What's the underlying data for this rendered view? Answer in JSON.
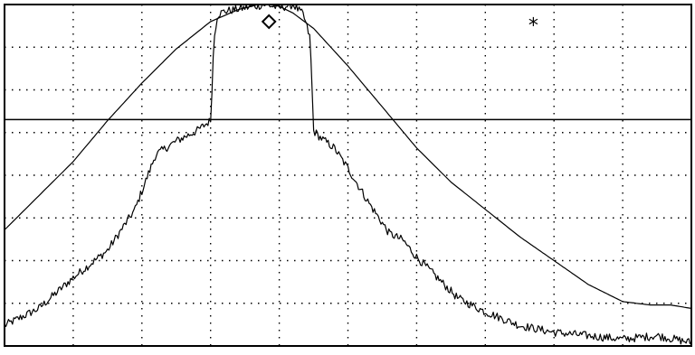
{
  "chart_data": {
    "type": "line",
    "title": "",
    "xlabel": "",
    "ylabel": "",
    "xlim": [
      0,
      1
    ],
    "ylim": [
      0,
      1
    ],
    "grid": true,
    "x_divisions": 10,
    "y_divisions": 8,
    "reference_level": 0.663,
    "series": [
      {
        "style": "smooth",
        "x": [
          0,
          0.05,
          0.1,
          0.15,
          0.2,
          0.25,
          0.3,
          0.34,
          0.37,
          0.385,
          0.4,
          0.42,
          0.45,
          0.5,
          0.55,
          0.6,
          0.65,
          0.7,
          0.75,
          0.8,
          0.85,
          0.9,
          0.94,
          0.97,
          1.0
        ],
        "values": [
          0.34,
          0.44,
          0.54,
          0.66,
          0.77,
          0.87,
          0.95,
          0.985,
          1.0,
          1.0,
          0.995,
          0.975,
          0.93,
          0.82,
          0.7,
          0.58,
          0.48,
          0.4,
          0.32,
          0.25,
          0.18,
          0.13,
          0.12,
          0.12,
          0.11
        ]
      },
      {
        "style": "noisy",
        "x": [
          0,
          0.05,
          0.1,
          0.15,
          0.19,
          0.22,
          0.25,
          0.28,
          0.3,
          0.305,
          0.31,
          0.32,
          0.35,
          0.38,
          0.4,
          0.42,
          0.435,
          0.445,
          0.45,
          0.46,
          0.48,
          0.5,
          0.53,
          0.56,
          0.58,
          0.6,
          0.63,
          0.66,
          0.7,
          0.75,
          0.8,
          0.85,
          0.9,
          0.95,
          1.0
        ],
        "values": [
          0.06,
          0.11,
          0.2,
          0.28,
          0.4,
          0.56,
          0.6,
          0.63,
          0.66,
          0.9,
          0.97,
          0.98,
          0.99,
          1.0,
          0.99,
          1.0,
          0.97,
          0.9,
          0.63,
          0.61,
          0.58,
          0.52,
          0.42,
          0.33,
          0.31,
          0.26,
          0.2,
          0.14,
          0.1,
          0.06,
          0.04,
          0.03,
          0.02,
          0.03,
          0.01
        ],
        "noise": 0.012
      }
    ],
    "markers": [
      {
        "type": "diamond",
        "x": 0.385,
        "y": 0.95
      },
      {
        "type": "asterisk",
        "x": 0.77,
        "y": 0.94,
        "label": "*"
      }
    ]
  }
}
